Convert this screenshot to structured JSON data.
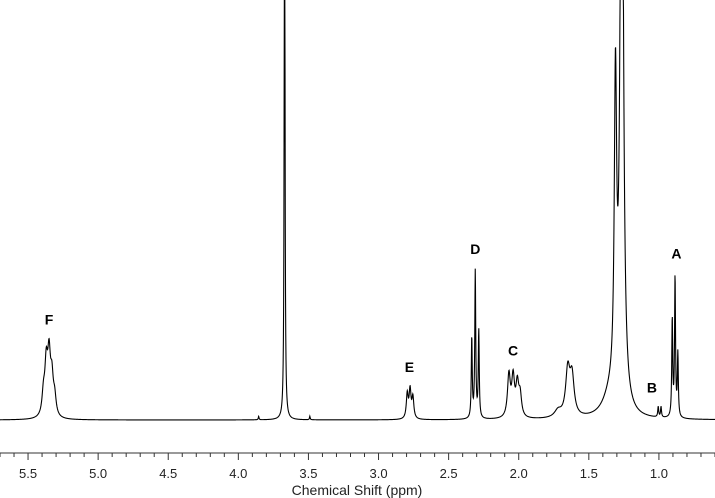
{
  "chart_data": {
    "type": "line",
    "title": "",
    "xlabel": "Chemical Shift (ppm)",
    "ylabel": "",
    "xlim": [
      5.7,
      0.6
    ],
    "x_reversed": true,
    "ylim": [
      0,
      100
    ],
    "grid": false,
    "legend": "none",
    "x_ticks": [
      {
        "value": 5.5,
        "label": "5.5"
      },
      {
        "value": 5.0,
        "label": "5.0"
      },
      {
        "value": 4.5,
        "label": "4.5"
      },
      {
        "value": 4.0,
        "label": "4.0"
      },
      {
        "value": 3.5,
        "label": "3.5"
      },
      {
        "value": 3.0,
        "label": "3.0"
      },
      {
        "value": 2.5,
        "label": "2.5"
      },
      {
        "value": 2.0,
        "label": "2.0"
      },
      {
        "value": 1.5,
        "label": "1.5"
      },
      {
        "value": 1.0,
        "label": "1.0"
      }
    ],
    "peaks": [
      {
        "shift": 5.35,
        "height": 16,
        "width": 0.012
      },
      {
        "shift": 5.37,
        "height": 14,
        "width": 0.012
      },
      {
        "shift": 5.33,
        "height": 10,
        "width": 0.012
      },
      {
        "shift": 5.39,
        "height": 6,
        "width": 0.012
      },
      {
        "shift": 5.31,
        "height": 5,
        "width": 0.012
      },
      {
        "shift": 3.855,
        "height": 1,
        "width": 0.003
      },
      {
        "shift": 3.67,
        "height": 210,
        "width": 0.003
      },
      {
        "shift": 3.49,
        "height": 1,
        "width": 0.003
      },
      {
        "shift": 2.795,
        "height": 7,
        "width": 0.008
      },
      {
        "shift": 2.775,
        "height": 8,
        "width": 0.008
      },
      {
        "shift": 2.755,
        "height": 6,
        "width": 0.008
      },
      {
        "shift": 2.335,
        "height": 23,
        "width": 0.004
      },
      {
        "shift": 2.31,
        "height": 42,
        "width": 0.004
      },
      {
        "shift": 2.285,
        "height": 25,
        "width": 0.004
      },
      {
        "shift": 2.07,
        "height": 12,
        "width": 0.012
      },
      {
        "shift": 2.04,
        "height": 11,
        "width": 0.012
      },
      {
        "shift": 2.01,
        "height": 9,
        "width": 0.012
      },
      {
        "shift": 1.99,
        "height": 6,
        "width": 0.012
      },
      {
        "shift": 1.65,
        "height": 13,
        "width": 0.018
      },
      {
        "shift": 1.62,
        "height": 11,
        "width": 0.018
      },
      {
        "shift": 1.72,
        "height": 2,
        "width": 0.03
      },
      {
        "shift": 1.31,
        "height": 88,
        "width": 0.01
      },
      {
        "shift": 1.265,
        "height": 230,
        "width": 0.012
      },
      {
        "shift": 1.35,
        "height": 5,
        "width": 0.06
      },
      {
        "shift": 1.005,
        "height": 3,
        "width": 0.004
      },
      {
        "shift": 0.985,
        "height": 3,
        "width": 0.004
      },
      {
        "shift": 0.905,
        "height": 28,
        "width": 0.004
      },
      {
        "shift": 0.885,
        "height": 40,
        "width": 0.004
      },
      {
        "shift": 0.865,
        "height": 18,
        "width": 0.004
      }
    ],
    "annotations": [
      {
        "text": "F",
        "x": 5.35
      },
      {
        "text": "E",
        "x": 2.78
      },
      {
        "text": "D",
        "x": 2.31
      },
      {
        "text": "C",
        "x": 2.04
      },
      {
        "text": "B",
        "x": 1.05
      },
      {
        "text": "A",
        "x": 0.875
      }
    ]
  }
}
